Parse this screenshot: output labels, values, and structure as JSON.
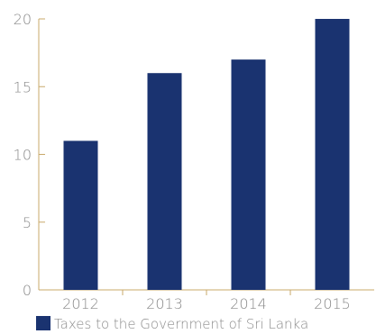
{
  "chart_data": {
    "type": "bar",
    "categories": [
      "2012",
      "2013",
      "2014",
      "2015"
    ],
    "series": [
      {
        "name": "Taxes to the Government of Sri Lanka",
        "values": [
          11,
          16,
          17,
          20
        ],
        "color": "#1a3370"
      }
    ],
    "ylim": [
      0,
      20
    ],
    "yticks": [
      0,
      5,
      10,
      15,
      20
    ],
    "grid": false,
    "legend_position": "bottom-left"
  },
  "colors": {
    "axis": "#c8a96a",
    "text": "#8a8a8a"
  }
}
